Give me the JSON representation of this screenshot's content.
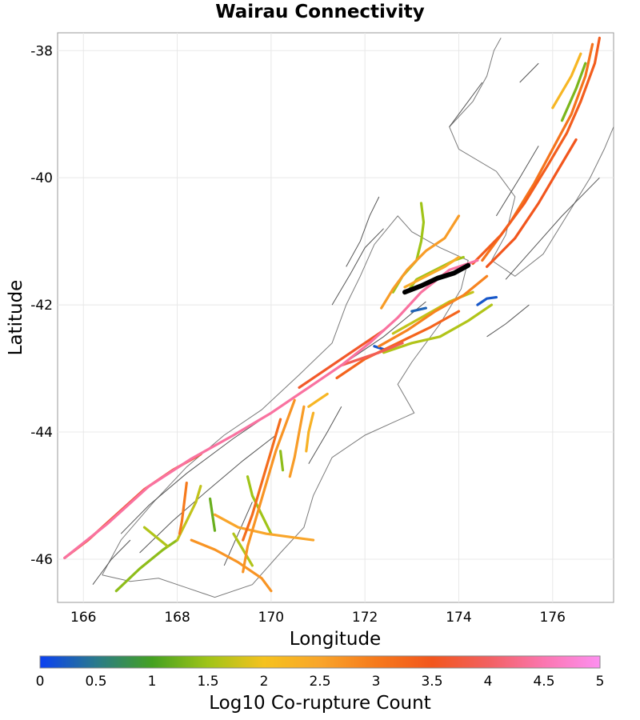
{
  "chart_data": {
    "type": "map",
    "title": "Wairau Connectivity",
    "xlabel": "Longitude",
    "ylabel": "Latitude",
    "xlim": [
      165.45,
      177.3
    ],
    "ylim": [
      -46.68,
      -37.72
    ],
    "xticks": [
      166,
      168,
      170,
      172,
      174,
      176
    ],
    "yticks": [
      -38,
      -40,
      -42,
      -44,
      -46
    ],
    "colorbar": {
      "label": "Log10 Co-rupture Count",
      "min": 0,
      "max": 5,
      "ticks": [
        "0",
        "0.5",
        "1",
        "1.5",
        "2",
        "2.5",
        "3",
        "3.5",
        "4",
        "4.5",
        "5"
      ],
      "colors": [
        "#0b40f2",
        "#2a7a8c",
        "#44a121",
        "#a0c418",
        "#f5c21e",
        "#f9a52a",
        "#f67a1c",
        "#f2561d",
        "#f26060",
        "#fb76b0",
        "#fd8ff0"
      ]
    },
    "target_fault": {
      "name": "Wairau",
      "color": "#000000",
      "coords": [
        [
          172.85,
          -41.8
        ],
        [
          173.2,
          -41.7
        ],
        [
          173.55,
          -41.58
        ],
        [
          173.9,
          -41.5
        ],
        [
          174.2,
          -41.38
        ]
      ]
    },
    "ruptures": [
      {
        "v": 4.4,
        "coords": [
          [
            165.6,
            -45.98
          ],
          [
            166.5,
            -45.45
          ],
          [
            167.4,
            -44.85
          ],
          [
            168.3,
            -44.42
          ],
          [
            169.2,
            -44.05
          ],
          [
            170.0,
            -43.7
          ],
          [
            170.8,
            -43.3
          ],
          [
            171.5,
            -42.95
          ],
          [
            172.1,
            -42.6
          ],
          [
            172.7,
            -42.2
          ],
          [
            173.2,
            -41.8
          ],
          [
            173.8,
            -41.45
          ],
          [
            174.4,
            -41.3
          ]
        ]
      },
      {
        "v": 3.7,
        "coords": [
          [
            165.6,
            -45.98
          ],
          [
            166.1,
            -45.7
          ],
          [
            166.7,
            -45.3
          ],
          [
            167.3,
            -44.9
          ],
          [
            167.9,
            -44.6
          ],
          [
            168.5,
            -44.35
          ]
        ]
      },
      {
        "v": 3.4,
        "coords": [
          [
            174.3,
            -41.35
          ],
          [
            174.9,
            -40.9
          ],
          [
            175.4,
            -40.4
          ],
          [
            175.9,
            -39.8
          ],
          [
            176.3,
            -39.3
          ],
          [
            176.6,
            -38.8
          ],
          [
            176.9,
            -38.2
          ],
          [
            177.0,
            -37.8
          ]
        ]
      },
      {
        "v": 3.1,
        "coords": [
          [
            174.5,
            -41.3
          ],
          [
            175.1,
            -40.7
          ],
          [
            175.6,
            -40.1
          ],
          [
            176.0,
            -39.55
          ],
          [
            176.4,
            -39.0
          ],
          [
            176.7,
            -38.4
          ],
          [
            176.85,
            -37.9
          ]
        ]
      },
      {
        "v": 3.5,
        "coords": [
          [
            174.6,
            -41.4
          ],
          [
            175.2,
            -40.95
          ],
          [
            175.7,
            -40.4
          ],
          [
            176.1,
            -39.9
          ],
          [
            176.5,
            -39.4
          ]
        ]
      },
      {
        "v": 2.9,
        "coords": [
          [
            172.3,
            -42.65
          ],
          [
            172.9,
            -42.4
          ],
          [
            173.5,
            -42.1
          ],
          [
            174.1,
            -41.85
          ],
          [
            174.6,
            -41.55
          ]
        ]
      },
      {
        "v": 3.3,
        "coords": [
          [
            171.4,
            -43.15
          ],
          [
            172.0,
            -42.85
          ],
          [
            172.7,
            -42.6
          ],
          [
            173.4,
            -42.35
          ],
          [
            174.0,
            -42.1
          ]
        ]
      },
      {
        "v": 1.6,
        "coords": [
          [
            172.4,
            -42.75
          ],
          [
            173.0,
            -42.6
          ],
          [
            173.6,
            -42.5
          ],
          [
            174.2,
            -42.25
          ],
          [
            174.7,
            -42.0
          ]
        ]
      },
      {
        "v": 1.7,
        "coords": [
          [
            172.6,
            -42.45
          ],
          [
            173.2,
            -42.2
          ],
          [
            173.8,
            -41.95
          ],
          [
            174.3,
            -41.8
          ]
        ]
      },
      {
        "v": 0.2,
        "coords": [
          [
            174.4,
            -42.0
          ],
          [
            174.6,
            -41.9
          ],
          [
            174.8,
            -41.88
          ]
        ]
      },
      {
        "v": 0.3,
        "coords": [
          [
            173.0,
            -42.1
          ],
          [
            173.3,
            -42.05
          ]
        ]
      },
      {
        "v": 0.2,
        "coords": [
          [
            172.2,
            -42.65
          ],
          [
            172.4,
            -42.7
          ]
        ]
      },
      {
        "v": 1.5,
        "coords": [
          [
            172.9,
            -41.8
          ],
          [
            173.1,
            -41.6
          ],
          [
            173.5,
            -41.45
          ],
          [
            173.9,
            -41.3
          ],
          [
            174.1,
            -41.25
          ]
        ]
      },
      {
        "v": 2.4,
        "coords": [
          [
            172.85,
            -41.72
          ],
          [
            173.3,
            -41.55
          ],
          [
            173.7,
            -41.4
          ],
          [
            174.0,
            -41.25
          ]
        ]
      },
      {
        "v": 1.5,
        "coords": [
          [
            172.6,
            -41.8
          ],
          [
            172.8,
            -41.55
          ],
          [
            173.1,
            -41.3
          ],
          [
            173.2,
            -41.0
          ],
          [
            173.25,
            -40.7
          ],
          [
            173.2,
            -40.4
          ]
        ]
      },
      {
        "v": 2.6,
        "coords": [
          [
            172.35,
            -42.05
          ],
          [
            172.6,
            -41.75
          ],
          [
            172.9,
            -41.45
          ],
          [
            173.3,
            -41.15
          ],
          [
            173.7,
            -40.95
          ],
          [
            174.0,
            -40.6
          ]
        ]
      },
      {
        "v": 3.6,
        "coords": [
          [
            170.6,
            -43.3
          ],
          [
            171.2,
            -43.0
          ],
          [
            171.8,
            -42.7
          ],
          [
            172.4,
            -42.4
          ]
        ]
      },
      {
        "v": 2.7,
        "coords": [
          [
            170.5,
            -43.5
          ],
          [
            170.3,
            -43.9
          ],
          [
            170.1,
            -44.3
          ],
          [
            169.9,
            -44.8
          ],
          [
            169.7,
            -45.3
          ],
          [
            169.5,
            -45.8
          ],
          [
            169.4,
            -46.2
          ]
        ]
      },
      {
        "v": 2.6,
        "coords": [
          [
            170.7,
            -43.6
          ],
          [
            170.6,
            -44.0
          ],
          [
            170.5,
            -44.4
          ],
          [
            170.4,
            -44.7
          ]
        ]
      },
      {
        "v": 2.3,
        "coords": [
          [
            170.9,
            -43.7
          ],
          [
            170.8,
            -44.0
          ],
          [
            170.75,
            -44.3
          ]
        ]
      },
      {
        "v": 3.2,
        "coords": [
          [
            170.2,
            -43.8
          ],
          [
            170.0,
            -44.3
          ],
          [
            169.8,
            -44.8
          ],
          [
            169.6,
            -45.3
          ],
          [
            169.4,
            -45.7
          ]
        ]
      },
      {
        "v": 2.5,
        "coords": [
          [
            168.8,
            -45.3
          ],
          [
            169.3,
            -45.5
          ],
          [
            169.9,
            -45.6
          ],
          [
            170.4,
            -45.65
          ],
          [
            170.9,
            -45.7
          ]
        ]
      },
      {
        "v": 2.7,
        "coords": [
          [
            168.3,
            -45.7
          ],
          [
            168.8,
            -45.85
          ],
          [
            169.3,
            -46.05
          ],
          [
            169.8,
            -46.3
          ],
          [
            170.0,
            -46.5
          ]
        ]
      },
      {
        "v": 1.4,
        "coords": [
          [
            166.7,
            -46.5
          ],
          [
            167.2,
            -46.15
          ],
          [
            167.7,
            -45.85
          ],
          [
            168.0,
            -45.7
          ]
        ]
      },
      {
        "v": 1.7,
        "coords": [
          [
            168.0,
            -45.7
          ],
          [
            168.2,
            -45.4
          ],
          [
            168.4,
            -45.1
          ],
          [
            168.5,
            -44.85
          ]
        ]
      },
      {
        "v": 1.2,
        "coords": [
          [
            168.7,
            -45.05
          ],
          [
            168.75,
            -45.3
          ],
          [
            168.8,
            -45.55
          ]
        ]
      },
      {
        "v": 1.5,
        "coords": [
          [
            169.5,
            -44.7
          ],
          [
            169.6,
            -45.0
          ],
          [
            169.8,
            -45.3
          ],
          [
            170.0,
            -45.6
          ]
        ]
      },
      {
        "v": 1.4,
        "coords": [
          [
            170.2,
            -44.3
          ],
          [
            170.25,
            -44.6
          ]
        ]
      },
      {
        "v": 1.6,
        "coords": [
          [
            169.2,
            -45.6
          ],
          [
            169.4,
            -45.85
          ],
          [
            169.6,
            -46.1
          ]
        ]
      },
      {
        "v": 3.0,
        "coords": [
          [
            168.2,
            -44.8
          ],
          [
            168.15,
            -45.1
          ],
          [
            168.1,
            -45.4
          ],
          [
            168.05,
            -45.6
          ]
        ]
      },
      {
        "v": 2.2,
        "coords": [
          [
            170.8,
            -43.6
          ],
          [
            171.0,
            -43.5
          ],
          [
            171.2,
            -43.4
          ]
        ]
      },
      {
        "v": 1.6,
        "coords": [
          [
            167.3,
            -45.5
          ],
          [
            167.8,
            -45.8
          ]
        ]
      },
      {
        "v": 1.3,
        "coords": [
          [
            176.2,
            -39.1
          ],
          [
            176.5,
            -38.6
          ],
          [
            176.7,
            -38.2
          ]
        ]
      },
      {
        "v": 2.2,
        "coords": [
          [
            176.0,
            -38.9
          ],
          [
            176.4,
            -38.4
          ],
          [
            176.6,
            -38.05
          ]
        ]
      },
      {
        "v": 3.9,
        "coords": [
          [
            171.5,
            -42.95
          ],
          [
            171.9,
            -42.85
          ],
          [
            172.3,
            -42.75
          ],
          [
            172.8,
            -42.6
          ]
        ]
      }
    ],
    "background_faults": {
      "color": "#555555",
      "coords": [
        [
          [
            166.8,
            -45.6
          ],
          [
            167.4,
            -45.15
          ],
          [
            168.2,
            -44.65
          ],
          [
            169.2,
            -44.1
          ],
          [
            170.4,
            -43.5
          ],
          [
            171.5,
            -42.95
          ],
          [
            172.4,
            -42.5
          ],
          [
            173.3,
            -41.95
          ]
        ],
        [
          [
            167.2,
            -45.9
          ],
          [
            167.9,
            -45.4
          ],
          [
            168.6,
            -44.95
          ],
          [
            169.4,
            -44.45
          ],
          [
            170.1,
            -44.05
          ]
        ],
        [
          [
            171.6,
            -41.4
          ],
          [
            171.9,
            -41.0
          ],
          [
            172.1,
            -40.6
          ],
          [
            172.3,
            -40.3
          ]
        ],
        [
          [
            171.3,
            -42.0
          ],
          [
            171.7,
            -41.5
          ],
          [
            172.0,
            -41.1
          ],
          [
            172.4,
            -40.8
          ]
        ],
        [
          [
            175.0,
            -41.6
          ],
          [
            175.6,
            -41.1
          ],
          [
            176.2,
            -40.6
          ],
          [
            177.0,
            -40.0
          ]
        ],
        [
          [
            174.6,
            -42.5
          ],
          [
            175.0,
            -42.3
          ],
          [
            175.5,
            -42.0
          ]
        ],
        [
          [
            174.8,
            -40.6
          ],
          [
            175.3,
            -40.0
          ],
          [
            175.7,
            -39.5
          ]
        ],
        [
          [
            170.8,
            -44.5
          ],
          [
            171.2,
            -44.0
          ],
          [
            171.5,
            -43.6
          ]
        ],
        [
          [
            169.0,
            -46.1
          ],
          [
            169.3,
            -45.6
          ],
          [
            169.6,
            -45.1
          ]
        ],
        [
          [
            166.2,
            -46.4
          ],
          [
            166.6,
            -46.0
          ],
          [
            167.0,
            -45.7
          ]
        ],
        [
          [
            173.8,
            -39.2
          ],
          [
            174.2,
            -38.8
          ],
          [
            174.5,
            -38.5
          ]
        ],
        [
          [
            175.3,
            -38.5
          ],
          [
            175.7,
            -38.2
          ]
        ]
      ]
    },
    "coastline": {
      "color": "#7a7a7a",
      "coords": [
        [
          [
            166.4,
            -46.25
          ],
          [
            166.8,
            -45.7
          ],
          [
            167.5,
            -45.1
          ],
          [
            168.2,
            -44.55
          ],
          [
            169.0,
            -44.05
          ],
          [
            169.8,
            -43.65
          ],
          [
            170.6,
            -43.1
          ],
          [
            171.3,
            -42.6
          ],
          [
            171.6,
            -42.0
          ],
          [
            171.9,
            -41.55
          ],
          [
            172.2,
            -41.05
          ],
          [
            172.7,
            -40.6
          ],
          [
            173.0,
            -40.85
          ],
          [
            173.6,
            -41.1
          ],
          [
            174.2,
            -41.3
          ],
          [
            174.05,
            -41.75
          ],
          [
            173.6,
            -42.3
          ],
          [
            173.0,
            -42.9
          ],
          [
            172.7,
            -43.25
          ],
          [
            173.05,
            -43.7
          ],
          [
            172.6,
            -43.85
          ],
          [
            172.0,
            -44.05
          ],
          [
            171.3,
            -44.4
          ],
          [
            170.9,
            -45.0
          ],
          [
            170.7,
            -45.5
          ],
          [
            170.2,
            -45.9
          ],
          [
            169.6,
            -46.4
          ],
          [
            168.8,
            -46.6
          ],
          [
            168.2,
            -46.45
          ],
          [
            167.6,
            -46.3
          ],
          [
            167.0,
            -46.35
          ],
          [
            166.4,
            -46.25
          ]
        ],
        [
          [
            174.7,
            -41.3
          ],
          [
            175.2,
            -41.55
          ],
          [
            175.8,
            -41.2
          ],
          [
            176.3,
            -40.6
          ],
          [
            176.8,
            -40.0
          ],
          [
            177.1,
            -39.55
          ],
          [
            177.3,
            -39.2
          ]
        ],
        [
          [
            174.7,
            -41.3
          ],
          [
            175.0,
            -40.9
          ],
          [
            175.2,
            -40.3
          ],
          [
            174.8,
            -39.9
          ],
          [
            174.0,
            -39.55
          ],
          [
            173.8,
            -39.2
          ],
          [
            174.3,
            -38.8
          ],
          [
            174.6,
            -38.4
          ],
          [
            174.75,
            -38.0
          ],
          [
            174.9,
            -37.8
          ]
        ]
      ]
    }
  }
}
